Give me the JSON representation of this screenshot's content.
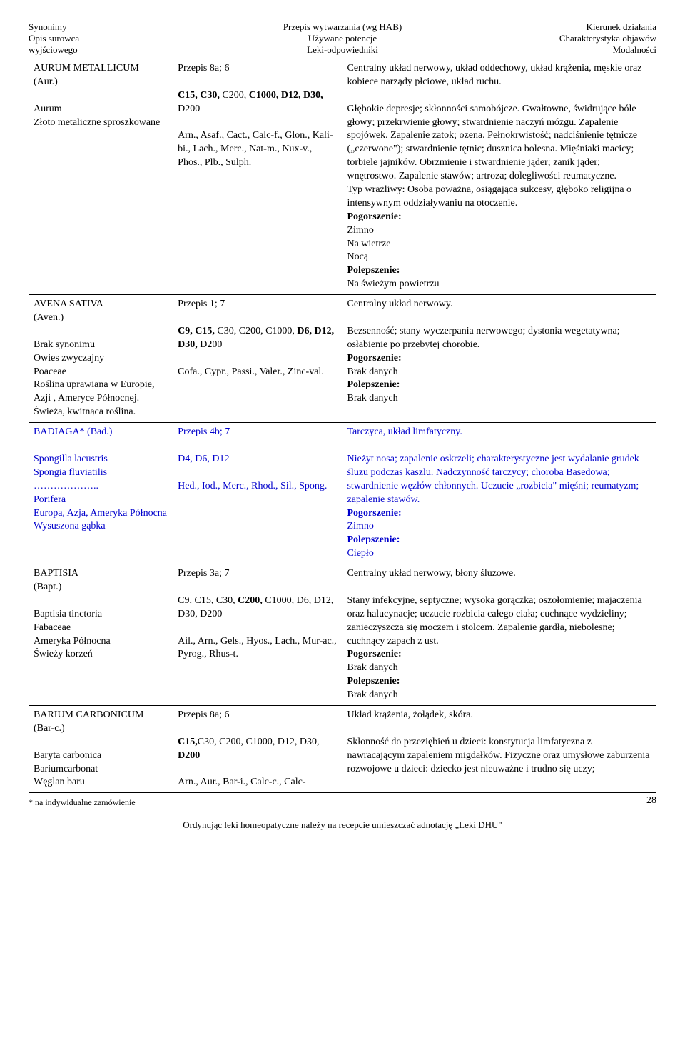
{
  "header": {
    "topLeft": "Synonimy",
    "topCenter": "Przepis wytwarzania (wg HAB)",
    "topRight": "Kierunek działania",
    "midLeft": "Opis surowca",
    "midCenter": "Używane potencje",
    "midRight": "Charakterystyka objawów",
    "botLeft": "wyjściowego",
    "botCenter": "Leki-odpowiedniki",
    "botRight": "Modalności"
  },
  "r1c1_title": "AURUM METALLICUM",
  "r1c1_abbr": "(Aur.)",
  "r1c1_syn1": "Aurum",
  "r1c1_syn2": "Złoto metaliczne sproszkowane",
  "r1c2_l1": "Przepis 8a; 6",
  "r1c2_l2a": "C15, C30,",
  "r1c2_l2b": " C200, ",
  "r1c2_l2c": "C1000, D12, D30,",
  "r1c2_l2d": " D200",
  "r1c2_l3": "Arn., Asaf., Cact., Calc-f., Glon., Kali-bi., Lach., Merc., Nat-m., Nux-v., Phos., Plb., Sulph.",
  "r1c3": "Centralny układ nerwowy, układ oddechowy, układ krążenia, męskie oraz kobiece narządy płciowe, układ ruchu.\n\nGłębokie depresje; skłonności samobójcze. Gwałtowne, świdrujące bóle głowy; przekrwienie głowy; stwardnienie naczyń mózgu. Zapalenie spojówek. Zapalenie zatok; ozena. Pełnokrwistość; nadciśnienie tętnicze („czerwone\"); stwardnienie tętnic; dusznica bolesna. Mięśniaki macicy; torbiele jajników. Obrzmienie i stwardnienie jąder; zanik jąder; wnętrostwo. Zapalenie stawów; artroza; dolegliwości reumatyczne.\nTyp wrażliwy: Osoba poważna, osiągająca sukcesy, głęboko religijna o intensywnym oddziaływaniu na otoczenie.",
  "r1c3_pog": "Pogorszenie:",
  "r1c3_pog1": "Zimno",
  "r1c3_pog2": "Na wietrze",
  "r1c3_pog3": "Nocą",
  "r1c3_pol": "Polepszenie:",
  "r1c3_pol1": "Na świeżym powietrzu",
  "r2c1_title": "AVENA SATIVA",
  "r2c1_abbr": "(Aven.)",
  "r2c1_s1": "Brak synonimu",
  "r2c1_s2": "Owies zwyczajny",
  "r2c1_s3": "Poaceae",
  "r2c1_s4": "Roślina uprawiana w Europie, Azji , Ameryce Północnej.",
  "r2c1_s5": "Świeża, kwitnąca roślina.",
  "r2c2_l1": "Przepis 1; 7",
  "r2c2_l2a": "C9, C15,",
  "r2c2_l2b": " C30, C200, C1000, ",
  "r2c2_l2c": "D6, D12, D30,",
  "r2c2_l2d": " D200",
  "r2c2_l3": "Cofa., Cypr., Passi., Valer., Zinc-val.",
  "r2c3_l1": "Centralny układ nerwowy.",
  "r2c3_l2": "Bezsenność; stany wyczerpania nerwowego; dystonia wegetatywna; osłabienie po przebytej chorobie.",
  "r2c3_pog": "Pogorszenie:",
  "r2c3_pogv": "Brak danych",
  "r2c3_pol": "Polepszenie:",
  "r2c3_polv": "Brak danych",
  "r3c1_title": "BADIAGA* (Bad.)",
  "r3c1_s1": "Spongilla lacustris",
  "r3c1_s2": "Spongia fluviatilis",
  "r3c1_s3": "………………..",
  "r3c1_s4": "Porifera",
  "r3c1_s5": "Europa, Azja, Ameryka Północna",
  "r3c1_s6": "Wysuszona gąbka",
  "r3c2_l1": "Przepis 4b; 7",
  "r3c2_l2": "D4, D6, D12",
  "r3c2_l3": "Hed., Iod., Merc., Rhod., Sil., Spong.",
  "r3c3_l1": "Tarczyca, układ limfatyczny.",
  "r3c3_l2": "Nieżyt nosa; zapalenie oskrzeli; charakterystyczne jest wydalanie grudek śluzu podczas kaszlu. Nadczynność tarczycy; choroba Basedowa; stwardnienie węzłów chłonnych. Uczucie „rozbicia\" mięśni; reumatyzm; zapalenie stawów.",
  "r3c3_pog": "Pogorszenie:",
  "r3c3_pogv": "Zimno",
  "r3c3_pol": "Polepszenie:",
  "r3c3_polv": "Ciepło",
  "r4c1_title": "BAPTISIA",
  "r4c1_abbr": "(Bapt.)",
  "r4c1_s1": "Baptisia tinctoria",
  "r4c1_s2": "Fabaceae",
  "r4c1_s3": "Ameryka Północna",
  "r4c1_s4": "Świeży korzeń",
  "r4c2_l1": "Przepis 3a; 7",
  "r4c2_l2a": "C9, C15, C30, ",
  "r4c2_l2b": "C200,",
  "r4c2_l2c": " C1000, D6, D12, D30, D200",
  "r4c2_l3": "Ail., Arn., Gels., Hyos., Lach., Mur-ac., Pyrog., Rhus-t.",
  "r4c3_l1": "Centralny układ nerwowy, błony śluzowe.",
  "r4c3_l2": "Stany infekcyjne, septyczne; wysoka gorączka; oszołomienie; majaczenia oraz halucynacje; uczucie rozbicia całego ciała; cuchnące wydzieliny; zanieczyszcza się moczem i stolcem. Zapalenie gardła, niebolesne; cuchnący zapach z ust.",
  "r4c3_pog": "Pogorszenie:",
  "r4c3_pogv": "Brak danych",
  "r4c3_pol": "Polepszenie:",
  "r4c3_polv": "Brak danych",
  "r5c1_title": "BARIUM CARBONICUM",
  "r5c1_abbr": "(Bar-c.)",
  "r5c1_s1": "Baryta carbonica",
  "r5c1_s2": "Bariumcarbonat",
  "r5c1_s3": "Węglan baru",
  "r5c2_l1": "Przepis 8a; 6",
  "r5c2_l2a": "C15,",
  "r5c2_l2b": "C30, C200, C1000, D12, D30,",
  "r5c2_l2c": " D200",
  "r5c2_l3": "Arn., Aur., Bar-i., Calc-c., Calc-",
  "r5c3_l1": "Układ krążenia, żołądek, skóra.",
  "r5c3_l2": "Skłonność do przeziębień u dzieci: konstytucja limfatyczna z nawracającym zapaleniem migdałków. Fizyczne oraz umysłowe zaburzenia rozwojowe u dzieci: dziecko jest nieuważne i trudno się uczy;",
  "footer": {
    "note": "* na indywidualne zamówienie",
    "pageNum": "28",
    "bottom": "Ordynując leki homeopatyczne należy na recepcie umieszczać adnotację „Leki DHU\""
  }
}
